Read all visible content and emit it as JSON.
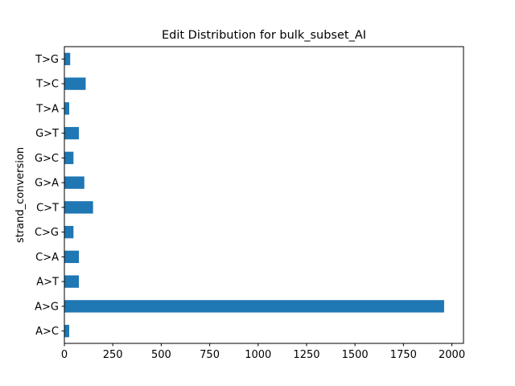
{
  "chart_data": {
    "type": "bar",
    "orientation": "horizontal",
    "title": "Edit Distribution for bulk_subset_AI",
    "xlabel": "",
    "ylabel": "strand_conversion",
    "categories": [
      "A>C",
      "A>G",
      "A>T",
      "C>A",
      "C>G",
      "C>T",
      "G>A",
      "G>C",
      "G>T",
      "T>A",
      "T>C",
      "T>G"
    ],
    "values": [
      25,
      1960,
      75,
      75,
      47,
      148,
      103,
      47,
      75,
      25,
      110,
      30
    ],
    "xlim": [
      0,
      2060
    ],
    "xticks": [
      0,
      250,
      500,
      750,
      1000,
      1250,
      1500,
      1750,
      2000
    ],
    "bar_color": "#1f77b4",
    "grid": false,
    "legend": "none"
  }
}
